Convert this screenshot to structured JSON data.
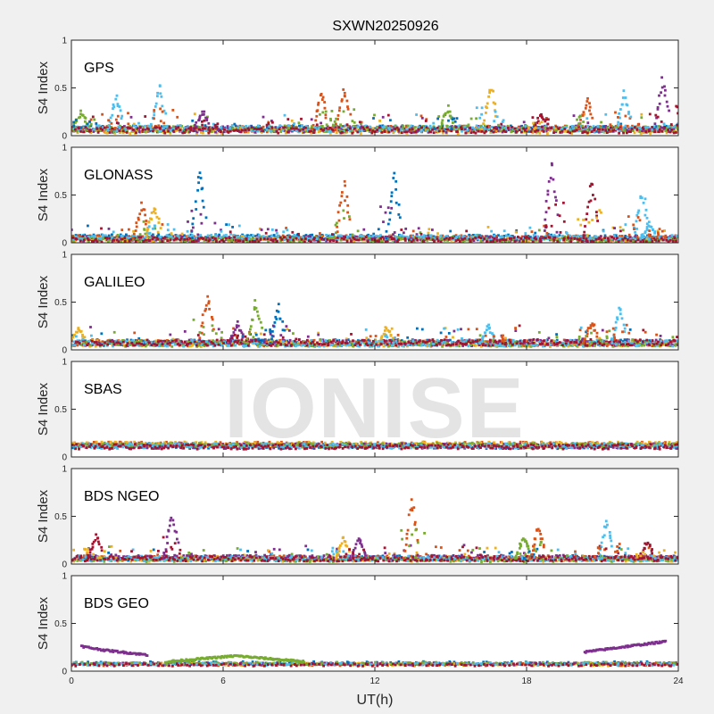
{
  "chart_data": {
    "type": "scatter",
    "title": "SXWN20250926",
    "xlabel": "UT(h)",
    "xlim": [
      0,
      24
    ],
    "xticks": [
      0,
      6,
      12,
      18,
      24
    ],
    "watermark": "IONISE",
    "colors": [
      "#0072BD",
      "#D95319",
      "#EDB120",
      "#7E2F8E",
      "#77AC30",
      "#4DBEEE",
      "#A2142F"
    ],
    "panels": [
      {
        "system": "GPS",
        "ylabel": "S4 Index",
        "ylim": [
          0,
          1
        ],
        "yticks": [
          0,
          0.5,
          1
        ],
        "baseline": 0.07,
        "noise": 0.05,
        "spikes": [
          [
            0.4,
            0.28,
            4
          ],
          [
            1.8,
            0.46,
            5
          ],
          [
            3.5,
            0.6,
            5
          ],
          [
            5.2,
            0.28,
            3
          ],
          [
            9.9,
            0.5,
            1
          ],
          [
            10.8,
            0.54,
            1
          ],
          [
            14.9,
            0.32,
            4
          ],
          [
            16.6,
            0.6,
            2
          ],
          [
            18.6,
            0.26,
            6
          ],
          [
            20.4,
            0.42,
            1
          ],
          [
            21.9,
            0.48,
            5
          ],
          [
            23.4,
            0.7,
            3
          ]
        ]
      },
      {
        "system": "GLONASS",
        "ylabel": "S4 Index",
        "ylim": [
          0,
          1
        ],
        "yticks": [
          0,
          0.5,
          1
        ],
        "baseline": 0.05,
        "noise": 0.04,
        "spikes": [
          [
            2.8,
            0.44,
            1
          ],
          [
            3.3,
            0.42,
            2
          ],
          [
            5.1,
            0.84,
            0
          ],
          [
            10.8,
            0.72,
            1
          ],
          [
            12.8,
            0.78,
            0
          ],
          [
            19.0,
            0.94,
            3
          ],
          [
            20.6,
            0.7,
            6
          ],
          [
            22.6,
            0.6,
            5
          ],
          [
            22.9,
            0.22,
            5
          ]
        ]
      },
      {
        "system": "GALILEO",
        "ylabel": "S4 Index",
        "ylim": [
          0,
          1
        ],
        "yticks": [
          0,
          0.5,
          1
        ],
        "baseline": 0.07,
        "noise": 0.05,
        "spikes": [
          [
            0.3,
            0.26,
            2
          ],
          [
            5.4,
            0.64,
            1
          ],
          [
            6.6,
            0.3,
            3
          ],
          [
            7.3,
            0.56,
            4
          ],
          [
            8.2,
            0.48,
            0
          ],
          [
            12.5,
            0.26,
            2
          ],
          [
            16.5,
            0.28,
            5
          ],
          [
            20.6,
            0.32,
            1
          ],
          [
            21.7,
            0.5,
            5
          ]
        ]
      },
      {
        "system": "SBAS",
        "ylabel": "S4 Index",
        "ylim": [
          0,
          1
        ],
        "yticks": [
          0,
          0.5,
          1
        ],
        "baseline": 0.12,
        "noise": 0.04,
        "spikes": []
      },
      {
        "system": "BDS NGEO",
        "ylabel": "S4 Index",
        "ylim": [
          0,
          1
        ],
        "yticks": [
          0,
          0.5,
          1
        ],
        "baseline": 0.06,
        "noise": 0.04,
        "spikes": [
          [
            1.0,
            0.34,
            6
          ],
          [
            4.0,
            0.6,
            3
          ],
          [
            10.8,
            0.32,
            2
          ],
          [
            11.4,
            0.3,
            3
          ],
          [
            13.5,
            0.76,
            1
          ],
          [
            17.9,
            0.3,
            4
          ],
          [
            18.5,
            0.46,
            1
          ],
          [
            21.2,
            0.52,
            5
          ],
          [
            22.8,
            0.26,
            6
          ]
        ]
      },
      {
        "system": "BDS GEO",
        "ylabel": "S4 Index",
        "ylim": [
          0,
          1
        ],
        "yticks": [
          0,
          0.5,
          1
        ],
        "baseline": 0.08,
        "noise": 0.02,
        "spikes": [],
        "segments": [
          {
            "x": [
              0.4,
              0.05
            ],
            "series": 0
          },
          {
            "x": [
              0.4,
              1.3
            ],
            "y": [
              0.26,
              0.22
            ],
            "series": 3
          },
          {
            "x": [
              1.3,
              3.0
            ],
            "y": [
              0.22,
              0.17
            ],
            "series": 3
          },
          {
            "x": [
              3.8,
              6.5
            ],
            "y": [
              0.1,
              0.16
            ],
            "series": 4
          },
          {
            "x": [
              6.5,
              9.2
            ],
            "y": [
              0.16,
              0.1
            ],
            "series": 4
          },
          {
            "x": [
              20.3,
              22.0
            ],
            "y": [
              0.2,
              0.26
            ],
            "series": 3
          },
          {
            "x": [
              22.0,
              23.5
            ],
            "y": [
              0.26,
              0.31
            ],
            "series": 3
          }
        ]
      }
    ]
  }
}
